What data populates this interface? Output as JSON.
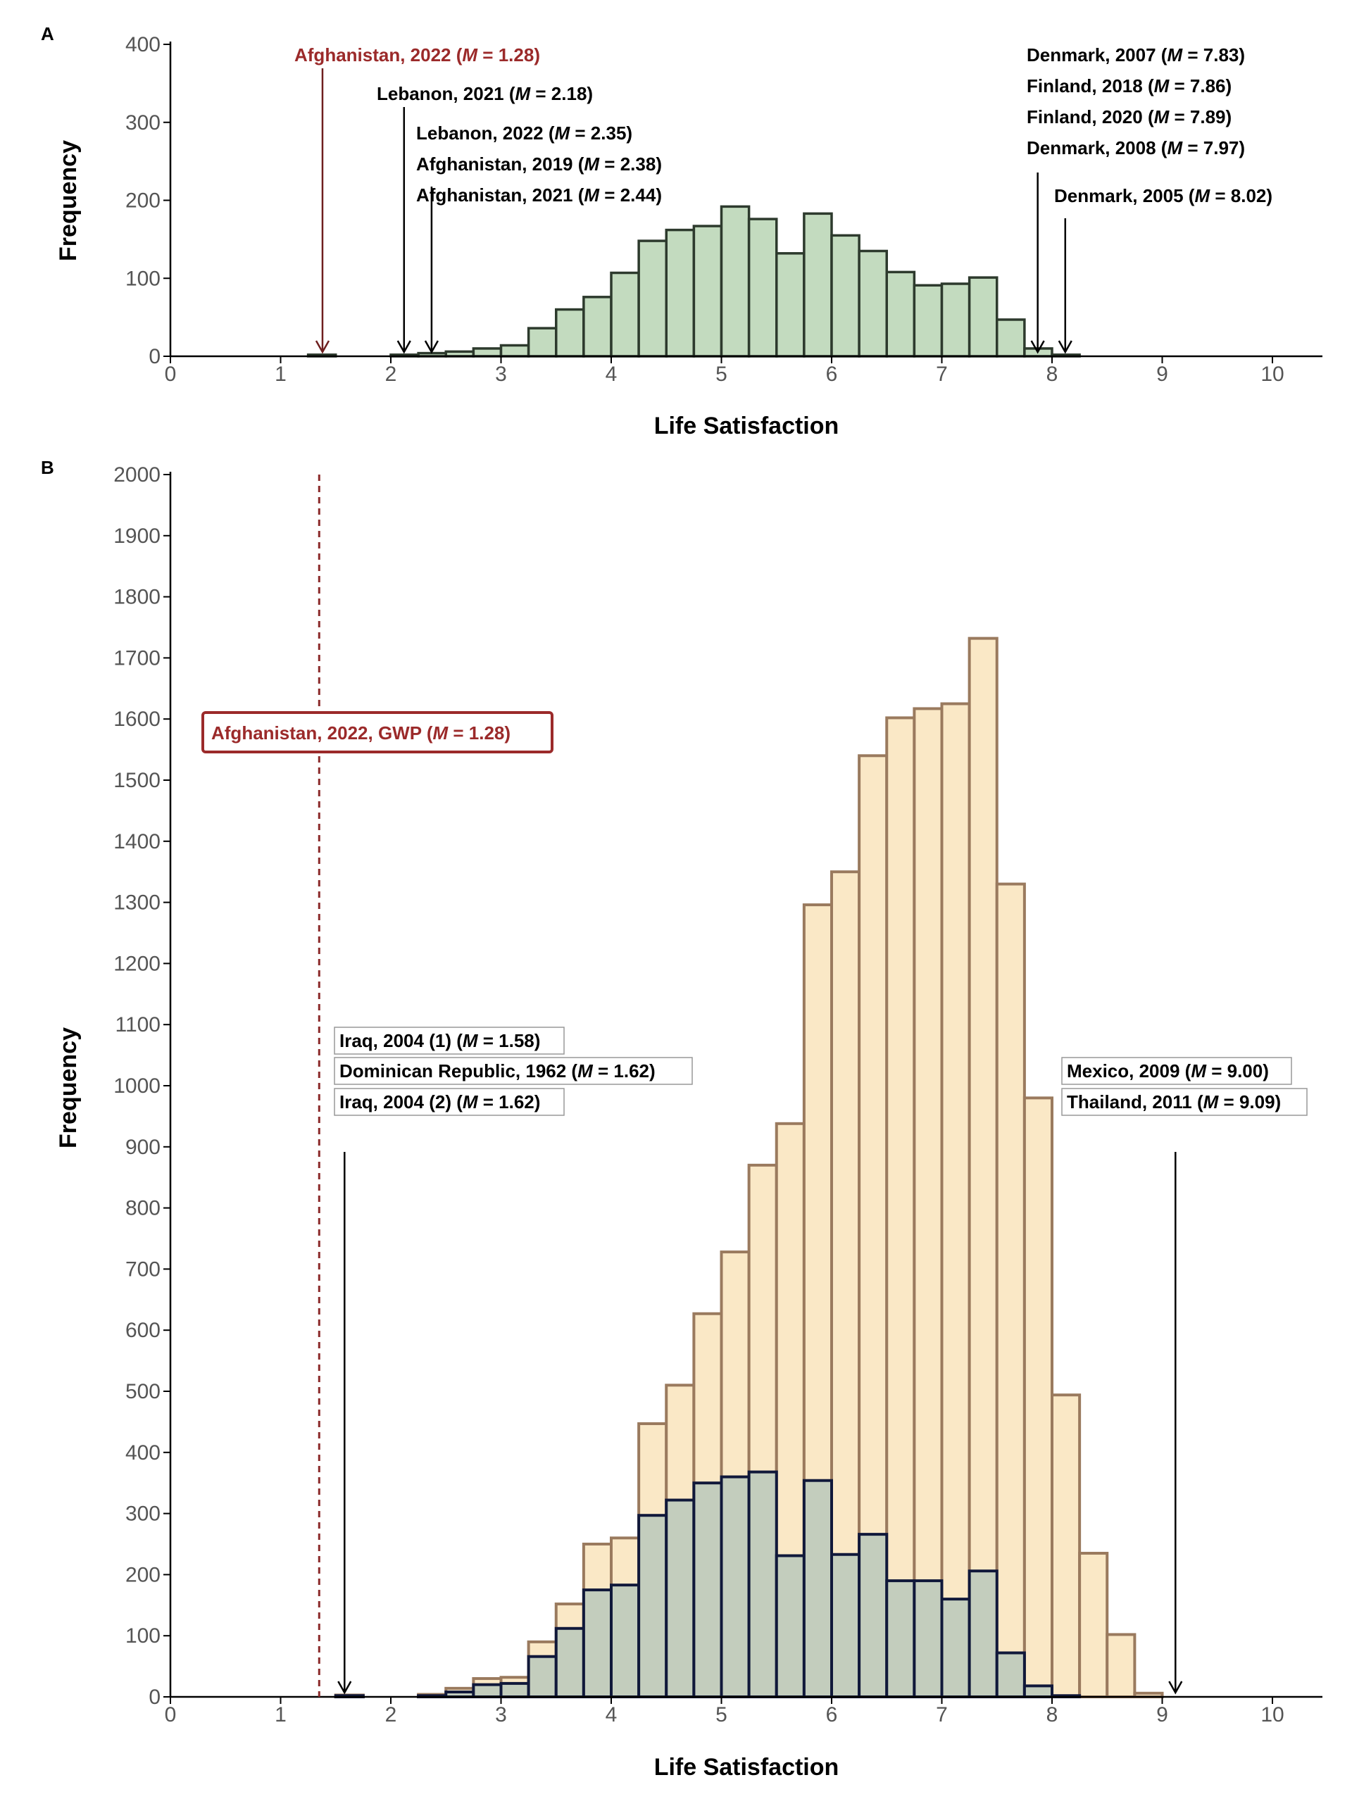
{
  "chart_data": [
    {
      "panel": "A",
      "type": "bar",
      "xlabel": "Life Satisfaction",
      "ylabel": "Frequency",
      "xlim": [
        0,
        10.5
      ],
      "ylim": [
        0,
        400
      ],
      "xticks": [
        "0",
        "1",
        "2",
        "3",
        "4",
        "5",
        "6",
        "7",
        "8",
        "9",
        "10"
      ],
      "yticks": [
        "0",
        "100",
        "200",
        "300",
        "400"
      ],
      "bin_width": 0.25,
      "colors": {
        "fill": "#c3dbbf",
        "stroke": "#2d3a2d"
      },
      "bins": [
        {
          "x": 1.25,
          "y": 2
        },
        {
          "x": 2.0,
          "y": 2
        },
        {
          "x": 2.25,
          "y": 4
        },
        {
          "x": 2.5,
          "y": 6
        },
        {
          "x": 2.75,
          "y": 10
        },
        {
          "x": 3.0,
          "y": 14
        },
        {
          "x": 3.25,
          "y": 36
        },
        {
          "x": 3.5,
          "y": 60
        },
        {
          "x": 3.75,
          "y": 76
        },
        {
          "x": 4.0,
          "y": 107
        },
        {
          "x": 4.25,
          "y": 148
        },
        {
          "x": 4.5,
          "y": 162
        },
        {
          "x": 4.75,
          "y": 167
        },
        {
          "x": 5.0,
          "y": 192
        },
        {
          "x": 5.25,
          "y": 176
        },
        {
          "x": 5.5,
          "y": 132
        },
        {
          "x": 5.75,
          "y": 183
        },
        {
          "x": 6.0,
          "y": 155
        },
        {
          "x": 6.25,
          "y": 135
        },
        {
          "x": 6.5,
          "y": 108
        },
        {
          "x": 6.75,
          "y": 91
        },
        {
          "x": 7.0,
          "y": 93
        },
        {
          "x": 7.25,
          "y": 101
        },
        {
          "x": 7.5,
          "y": 47
        },
        {
          "x": 7.75,
          "y": 10
        },
        {
          "x": 8.0,
          "y": 2
        }
      ],
      "annotations": [
        {
          "label": "Afghanistan, 2022 (",
          "italic": "M",
          "rest": " = 1.28)",
          "x": 1.38,
          "highlight": true
        },
        {
          "label": "Lebanon, 2021 (",
          "italic": "M",
          "rest": " = 2.18)",
          "x": 2.12,
          "highlight": false
        },
        {
          "label": "Lebanon, 2022 (",
          "italic": "M",
          "rest": " = 2.35)",
          "x": 2.37,
          "highlight": false
        },
        {
          "label": "Afghanistan, 2019 (",
          "italic": "M",
          "rest": " = 2.38)",
          "highlight": false
        },
        {
          "label": "Afghanistan, 2021 (",
          "italic": "M",
          "rest": " = 2.44)",
          "highlight": false
        },
        {
          "label": "Denmark, 2007 (",
          "italic": "M",
          "rest": " = 7.83)",
          "x": 7.87,
          "highlight": false
        },
        {
          "label": "Finland, 2018 (",
          "italic": "M",
          "rest": " = 7.86)",
          "highlight": false
        },
        {
          "label": "Finland, 2020 (",
          "italic": "M",
          "rest": " = 7.89)",
          "highlight": false
        },
        {
          "label": "Denmark, 2008 (",
          "italic": "M",
          "rest": " = 7.97)",
          "highlight": false
        },
        {
          "label": "Denmark, 2005 (",
          "italic": "M",
          "rest": " = 8.02)",
          "x": 8.12,
          "highlight": false
        }
      ]
    },
    {
      "panel": "B",
      "type": "bar",
      "xlabel": "Life Satisfaction",
      "ylabel": "Frequency",
      "xlim": [
        0,
        10.5
      ],
      "ylim": [
        0,
        2000
      ],
      "xticks": [
        "0",
        "1",
        "2",
        "3",
        "4",
        "5",
        "6",
        "7",
        "8",
        "9",
        "10"
      ],
      "yticks": [
        "0",
        "100",
        "200",
        "300",
        "400",
        "500",
        "600",
        "700",
        "800",
        "900",
        "1000",
        "1100",
        "1200",
        "1300",
        "1400",
        "1500",
        "1600",
        "1700",
        "1800",
        "1900",
        "2000"
      ],
      "bin_width": 0.25,
      "reference_line": {
        "x": 1.35
      },
      "colors": {
        "back_fill": "#fae8c6",
        "back_stroke": "#9a7a5e",
        "front_fill": "#c3cdbd",
        "front_stroke": "#10183a",
        "reference": "#8b2a2a"
      },
      "series": [
        {
          "bins": [
            {
              "x": 1.5,
              "y": 3
            },
            {
              "x": 2.25,
              "y": 4
            },
            {
              "x": 2.5,
              "y": 14
            },
            {
              "x": 2.75,
              "y": 30
            },
            {
              "x": 3.0,
              "y": 32
            },
            {
              "x": 3.25,
              "y": 90
            },
            {
              "x": 3.5,
              "y": 152
            },
            {
              "x": 3.75,
              "y": 250
            },
            {
              "x": 4.0,
              "y": 260
            },
            {
              "x": 4.25,
              "y": 447
            },
            {
              "x": 4.5,
              "y": 510
            },
            {
              "x": 4.75,
              "y": 627
            },
            {
              "x": 5.0,
              "y": 728
            },
            {
              "x": 5.25,
              "y": 870
            },
            {
              "x": 5.5,
              "y": 938
            },
            {
              "x": 5.75,
              "y": 1296
            },
            {
              "x": 6.0,
              "y": 1350
            },
            {
              "x": 6.25,
              "y": 1540
            },
            {
              "x": 6.5,
              "y": 1602
            },
            {
              "x": 6.75,
              "y": 1617
            },
            {
              "x": 7.0,
              "y": 1625
            },
            {
              "x": 7.25,
              "y": 1732
            },
            {
              "x": 7.5,
              "y": 1330
            },
            {
              "x": 7.75,
              "y": 980
            },
            {
              "x": 8.0,
              "y": 494
            },
            {
              "x": 8.25,
              "y": 235
            },
            {
              "x": 8.5,
              "y": 102
            },
            {
              "x": 8.75,
              "y": 6
            }
          ]
        },
        {
          "bins": [
            {
              "x": 1.5,
              "y": 2
            },
            {
              "x": 2.25,
              "y": 2
            },
            {
              "x": 2.5,
              "y": 8
            },
            {
              "x": 2.75,
              "y": 20
            },
            {
              "x": 3.0,
              "y": 22
            },
            {
              "x": 3.25,
              "y": 66
            },
            {
              "x": 3.5,
              "y": 112
            },
            {
              "x": 3.75,
              "y": 175
            },
            {
              "x": 4.0,
              "y": 183
            },
            {
              "x": 4.25,
              "y": 297
            },
            {
              "x": 4.5,
              "y": 322
            },
            {
              "x": 4.75,
              "y": 350
            },
            {
              "x": 5.0,
              "y": 360
            },
            {
              "x": 5.25,
              "y": 368
            },
            {
              "x": 5.5,
              "y": 231
            },
            {
              "x": 5.75,
              "y": 354
            },
            {
              "x": 6.0,
              "y": 233
            },
            {
              "x": 6.25,
              "y": 266
            },
            {
              "x": 6.5,
              "y": 190
            },
            {
              "x": 6.75,
              "y": 190
            },
            {
              "x": 7.0,
              "y": 160
            },
            {
              "x": 7.25,
              "y": 206
            },
            {
              "x": 7.5,
              "y": 72
            },
            {
              "x": 7.75,
              "y": 18
            },
            {
              "x": 8.0,
              "y": 2
            }
          ]
        }
      ],
      "annotations": [
        {
          "label": "Afghanistan, 2022, GWP (",
          "italic": "M",
          "rest": " = 1.28)",
          "highlight": true
        },
        {
          "label": "Iraq, 2004 (1) (",
          "italic": "M",
          "rest": " = 1.58)",
          "x": 1.58,
          "highlight": false
        },
        {
          "label": "Dominican Republic, 1962 (",
          "italic": "M",
          "rest": " = 1.62)",
          "highlight": false
        },
        {
          "label": "Iraq, 2004 (2) (",
          "italic": "M",
          "rest": " = 1.62)",
          "highlight": false
        },
        {
          "label": "Mexico, 2009 (",
          "italic": "M",
          "rest": " = 9.00)",
          "x": 9.12,
          "highlight": false
        },
        {
          "label": "Thailand, 2011 (",
          "italic": "M",
          "rest": " = 9.09)",
          "highlight": false
        }
      ]
    }
  ]
}
